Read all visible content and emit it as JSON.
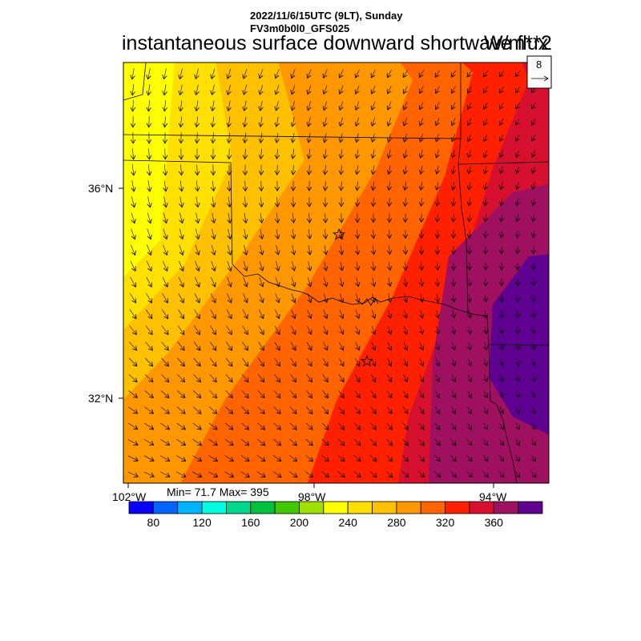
{
  "header": {
    "line1": "2022/11/6/15UTC (9LT), Sunday",
    "line2": "FV3m0b0l0_GFS025"
  },
  "title": "instantaneous surface downward shortwave flux",
  "units": "W/m**2",
  "vector_reference": {
    "value": "8"
  },
  "stats": {
    "text": "Min= 71.7 Max= 395",
    "min": 71.7,
    "max": 395
  },
  "axes": {
    "lat_labels": [
      "36°N",
      "32°N"
    ],
    "lon_labels": [
      "102°W",
      "98°W",
      "94°W"
    ]
  },
  "colorbar": {
    "labels": [
      "80",
      "120",
      "160",
      "200",
      "240",
      "280",
      "320",
      "360"
    ],
    "colors": [
      "#0a00ff",
      "#0066ff",
      "#00b4ff",
      "#00ffe0",
      "#00d890",
      "#00c040",
      "#40c800",
      "#a0e000",
      "#ffff00",
      "#ffe000",
      "#ffc000",
      "#ff9800",
      "#ff6400",
      "#ff2000",
      "#d81030",
      "#a01060",
      "#600090"
    ]
  },
  "map_colors": {
    "c200": "#ffff00",
    "c220": "#ffe000",
    "c240": "#ffc000",
    "c260": "#ff9800",
    "c280": "#ff6400",
    "c300": "#ff2000",
    "c320": "#d81030",
    "c340": "#a01060",
    "c360": "#600090"
  },
  "markers": [
    "star",
    "star"
  ]
}
